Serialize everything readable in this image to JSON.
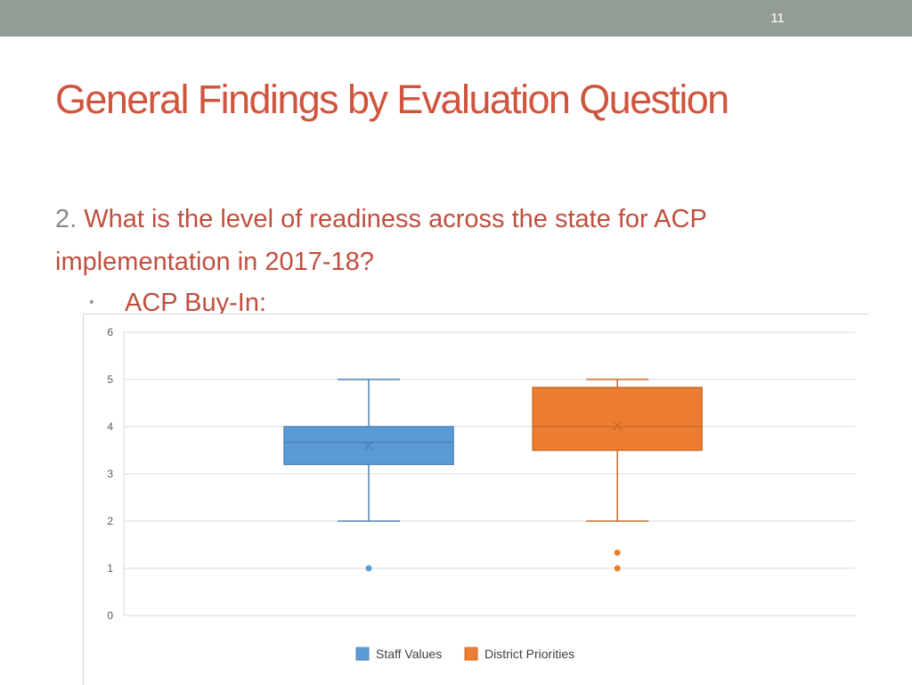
{
  "slide": {
    "number": "11",
    "title": "General Findings by Evaluation Question",
    "question_number": "2.",
    "question_text": "What is the level of readiness across the state for ACP implementation in 2017-18?",
    "bullet": "ACP Buy-In:"
  },
  "colors": {
    "topbar": "#939d96",
    "title": "#d0553f",
    "text": "#c04f3e",
    "staff": "#5b9bd5",
    "district": "#ed7d31"
  },
  "chart_data": {
    "type": "box",
    "ylim": [
      0,
      6
    ],
    "yticks": [
      "0",
      "1",
      "2",
      "3",
      "4",
      "5",
      "6"
    ],
    "grid": true,
    "legend_position": "bottom",
    "series": [
      {
        "name": "Staff Values",
        "color": "#5b9bd5",
        "min": 2,
        "q1": 3.2,
        "median": 3.67,
        "q3": 4,
        "max": 5,
        "mean": 3.6,
        "outliers": [
          1
        ]
      },
      {
        "name": "District Priorities",
        "color": "#ed7d31",
        "min": 2,
        "q1": 3.5,
        "median": 4,
        "q3": 4.83,
        "max": 5,
        "mean": 4.02,
        "outliers": [
          1.33,
          1
        ]
      }
    ]
  }
}
